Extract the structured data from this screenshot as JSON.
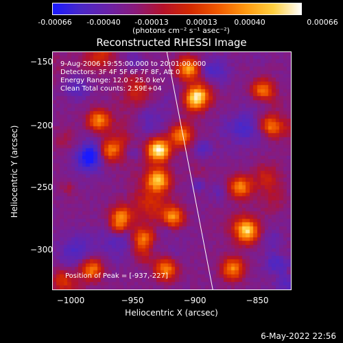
{
  "colorbar": {
    "tick_labels": [
      "-0.00066",
      "-0.00040",
      "-0.00013",
      "0.00013",
      "0.00040",
      "0.00066"
    ],
    "units": "(photons cm⁻² s⁻¹ asec⁻²)"
  },
  "title": "Reconstructed RHESSI Image",
  "annotations": {
    "time_range": "9-Aug-2006 19:55:00.000 to 20:01:00.000",
    "detectors": "Detectors: 3F 4F 5F 6F 7F 8F, Att 0",
    "energy_range": "Energy Range: 12.0 - 25.0 keV",
    "method": "Clean    Total counts: 2.59E+04",
    "peak": "Position of Peak = [-937,-227]"
  },
  "axes": {
    "xlabel": "Heliocentric X (arcsec)",
    "ylabel": "Heliocentric Y (arcsec)",
    "xticks": [
      "−1000",
      "−950",
      "−900",
      "−850"
    ],
    "yticks": [
      "−150",
      "−200",
      "−250",
      "−300"
    ],
    "xlim": [
      -1015,
      -823
    ],
    "ylim": [
      -333,
      -141
    ]
  },
  "timestamp": "6-May-2022 22:56",
  "chart_data": {
    "type": "heatmap",
    "title": "Reconstructed RHESSI Image",
    "xlabel": "Heliocentric X (arcsec)",
    "ylabel": "Heliocentric Y (arcsec)",
    "xlim": [
      -1015,
      -823
    ],
    "ylim": [
      -333,
      -141
    ],
    "zlim": [
      -0.00066,
      0.00066
    ],
    "peak_position": [
      -937,
      -227
    ],
    "colormap": [
      "#1a1aff",
      "#4a28c8",
      "#6a22a8",
      "#8a1a7a",
      "#b5122a",
      "#d42a00",
      "#f05a00",
      "#ff9a10",
      "#ffd040",
      "#ffffff"
    ],
    "limb_line": {
      "x": [
        -923,
        -886
      ],
      "y": [
        -141,
        -333
      ],
      "color": "#ffffff"
    }
  }
}
